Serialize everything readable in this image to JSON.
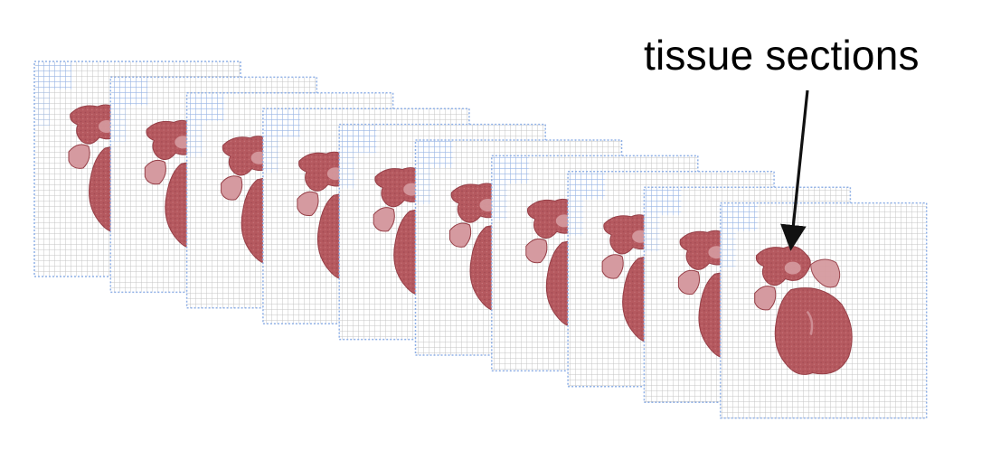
{
  "annotation": {
    "label": "tissue sections"
  },
  "figure": {
    "section_count": 10,
    "colors": {
      "grid_line": "#c4c4c4",
      "grid_blue": "#8fb0e6",
      "tissue": "#b5595f",
      "tissue_dark": "#963f47",
      "tissue_light": "#d59aa0",
      "arrow": "#111111",
      "background": "#ffffff"
    },
    "icons": {
      "arrow": "arrow-down-icon"
    }
  }
}
